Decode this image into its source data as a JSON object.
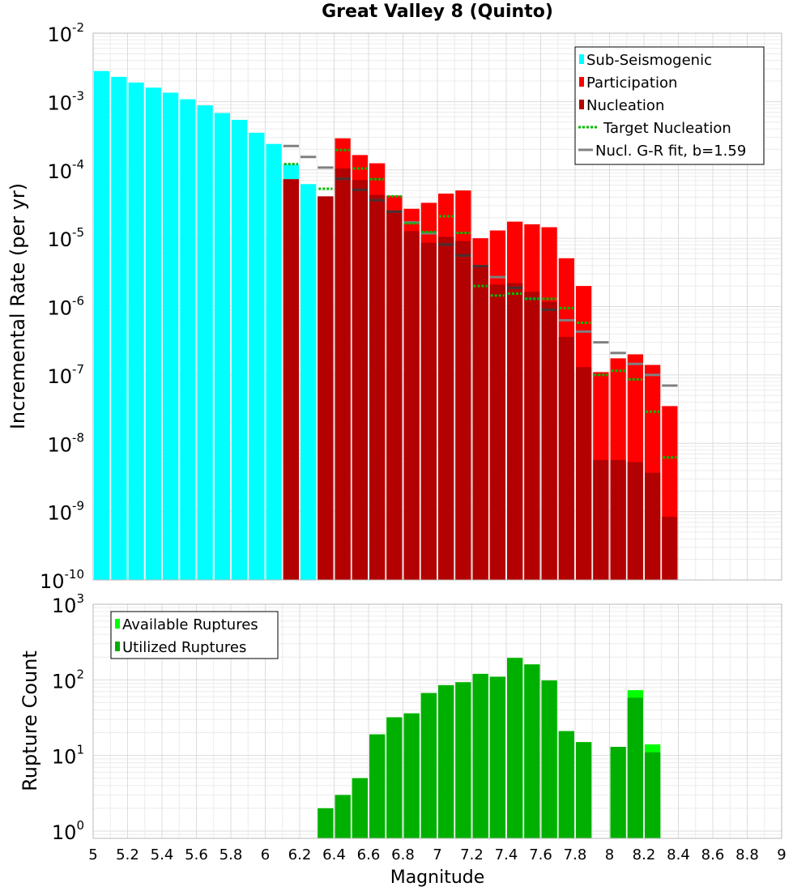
{
  "chart_data": [
    {
      "type": "bar",
      "title": "Great Valley 8 (Quinto)",
      "xlabel": "",
      "ylabel": "Incremental Rate (per yr)",
      "xlim": [
        5,
        9
      ],
      "ylim": [
        1e-10,
        0.01
      ],
      "yscale": "log",
      "grid": true,
      "legend_position": "top-right",
      "y_tick_labels": [
        {
          "exp": "-10",
          "value": 1e-10
        },
        {
          "exp": "-9",
          "value": 1e-09
        },
        {
          "exp": "-8",
          "value": 1e-08
        },
        {
          "exp": "-7",
          "value": 1e-07
        },
        {
          "exp": "-6",
          "value": 1e-06
        },
        {
          "exp": "-5",
          "value": 1e-05
        },
        {
          "exp": "-4",
          "value": 0.0001
        },
        {
          "exp": "-3",
          "value": 0.001
        },
        {
          "exp": "-2",
          "value": 0.01
        }
      ],
      "legend": [
        {
          "label": "Sub-Seismogenic",
          "color": "#00ffff",
          "kind": "box"
        },
        {
          "label": "Participation",
          "color": "#ff0000",
          "kind": "box"
        },
        {
          "label": "Nucleation",
          "color": "#b30000",
          "kind": "box"
        },
        {
          "label": "Target Nucleation",
          "color": "#00bb00",
          "kind": "dotted"
        },
        {
          "label": "Nucl. G-R fit, b=1.59",
          "color": "#808080",
          "kind": "line"
        }
      ],
      "series": [
        {
          "name": "Sub-Seismogenic",
          "color": "#00ffff",
          "x": [
            5.05,
            5.15,
            5.25,
            5.35,
            5.45,
            5.55,
            5.65,
            5.75,
            5.85,
            5.95,
            6.05,
            6.15,
            6.25
          ],
          "values": [
            0.0028,
            0.0023,
            0.0019,
            0.0016,
            0.00135,
            0.00108,
            0.00088,
            0.00068,
            0.00054,
            0.00035,
            0.00024,
            0.00012,
            6.2e-05
          ]
        },
        {
          "name": "Participation",
          "color": "#ff0000",
          "x": [
            6.15,
            6.25,
            6.35,
            6.45,
            6.55,
            6.65,
            6.75,
            6.85,
            6.95,
            7.05,
            7.15,
            7.25,
            7.35,
            7.45,
            7.55,
            7.65,
            7.75,
            7.85,
            7.95,
            8.05,
            8.15,
            8.25,
            8.35
          ],
          "values": [
            7.3e-05,
            0,
            4.1e-05,
            0.00029,
            0.000165,
            0.000125,
            4.2e-05,
            2.7e-05,
            3.3e-05,
            4.5e-05,
            5e-05,
            1e-05,
            1.3e-05,
            1.75e-05,
            1.6e-05,
            1.45e-05,
            5.1e-06,
            2e-06,
            1.1e-07,
            1.75e-07,
            2e-07,
            1.4e-07,
            3.5e-08
          ]
        },
        {
          "name": "Nucleation",
          "color": "#b30000",
          "x": [
            6.15,
            6.25,
            6.35,
            6.45,
            6.55,
            6.65,
            6.75,
            6.85,
            6.95,
            7.05,
            7.15,
            7.25,
            7.35,
            7.45,
            7.55,
            7.65,
            7.75,
            7.85,
            7.95,
            8.05,
            8.15,
            8.25,
            8.35
          ],
          "values": [
            7.3e-05,
            0,
            4.1e-05,
            0.000105,
            7.1e-05,
            4.3e-05,
            2.55e-05,
            1.27e-05,
            8.6e-06,
            1.05e-05,
            9.1e-06,
            3.9e-06,
            2.1e-06,
            2.2e-06,
            1.65e-06,
            1.18e-06,
            3.6e-07,
            1.3e-07,
            5.7e-09,
            5.7e-09,
            5.3e-09,
            3.7e-09,
            8.4e-10
          ]
        },
        {
          "name": "Target Nucleation",
          "color": "#00bb00",
          "x": [
            6.15,
            6.35,
            6.45,
            6.55,
            6.65,
            6.75,
            6.85,
            6.95,
            7.05,
            7.15,
            7.25,
            7.35,
            7.45,
            7.55,
            7.65,
            7.75,
            7.85,
            7.95,
            8.05,
            8.15,
            8.25,
            8.35
          ],
          "values": [
            0.000122,
            5.3e-05,
            0.000195,
            0.000105,
            7.3e-05,
            4.1e-05,
            1.65e-05,
            1.23e-05,
            2.1e-05,
            1.2e-05,
            2e-06,
            1.45e-06,
            1.55e-06,
            1.3e-06,
            1.3e-06,
            9.5e-07,
            5.8e-07,
            1e-07,
            1.15e-07,
            8.6e-08,
            2.9e-08,
            6.2e-09
          ]
        },
        {
          "name": "Nucl. G-R fit, b=1.59",
          "color": "#808080",
          "x": [
            6.15,
            6.25,
            6.35,
            6.45,
            6.55,
            6.65,
            6.75,
            6.85,
            6.95,
            7.05,
            7.15,
            7.25,
            7.35,
            7.45,
            7.55,
            7.65,
            7.75,
            7.85,
            7.95,
            8.05,
            8.15,
            8.25,
            8.35
          ],
          "values": [
            0.000224,
            0.000155,
            0.000108,
            7.4e-05,
            5.1e-05,
            3.6e-05,
            2.45e-05,
            1.7e-05,
            1.18e-05,
            8.1e-06,
            5.6e-06,
            3.9e-06,
            2.7e-06,
            1.88e-06,
            1.3e-06,
            9e-07,
            6.3e-07,
            4.3e-07,
            3e-07,
            2.1e-07,
            1.45e-07,
            1e-07,
            7e-08
          ]
        }
      ]
    },
    {
      "type": "bar",
      "title": "",
      "xlabel": "Magnitude",
      "ylabel": "Rupture Count",
      "xlim": [
        5,
        9
      ],
      "ylim": [
        0.8,
        1000
      ],
      "yscale": "log",
      "grid": true,
      "legend_position": "top-left",
      "x_tick_labels": [
        "5",
        "5.2",
        "5.4",
        "5.6",
        "5.8",
        "6",
        "6.2",
        "6.4",
        "6.6",
        "6.8",
        "7",
        "7.2",
        "7.4",
        "7.6",
        "7.8",
        "8",
        "8.2",
        "8.4",
        "8.6",
        "8.8",
        "9"
      ],
      "y_tick_labels": [
        {
          "exp": "0",
          "value": 1
        },
        {
          "exp": "1",
          "value": 10
        },
        {
          "exp": "2",
          "value": 100
        },
        {
          "exp": "3",
          "value": 1000
        }
      ],
      "legend": [
        {
          "label": "Available Ruptures",
          "color": "#00ff00",
          "kind": "box"
        },
        {
          "label": "Utilized Ruptures",
          "color": "#00b000",
          "kind": "box"
        }
      ],
      "series": [
        {
          "name": "Available Ruptures",
          "color": "#00ff00",
          "x": [
            6.35,
            6.45,
            6.55,
            6.65,
            6.75,
            6.85,
            6.95,
            7.05,
            7.15,
            7.25,
            7.35,
            7.45,
            7.55,
            7.65,
            7.75,
            7.85,
            8.05,
            8.15,
            8.25
          ],
          "values": [
            2,
            3,
            5,
            19,
            32,
            36,
            67,
            85,
            93,
            120,
            110,
            195,
            160,
            98,
            21,
            15,
            13,
            73,
            14
          ]
        },
        {
          "name": "Utilized Ruptures",
          "color": "#00b000",
          "x": [
            6.35,
            6.45,
            6.55,
            6.65,
            6.75,
            6.85,
            6.95,
            7.05,
            7.15,
            7.25,
            7.35,
            7.45,
            7.55,
            7.65,
            7.75,
            7.85,
            8.05,
            8.15,
            8.25
          ],
          "values": [
            2,
            3,
            5,
            19,
            32,
            36,
            67,
            85,
            93,
            120,
            110,
            195,
            160,
            98,
            21,
            15,
            13,
            58,
            11
          ]
        }
      ]
    }
  ]
}
